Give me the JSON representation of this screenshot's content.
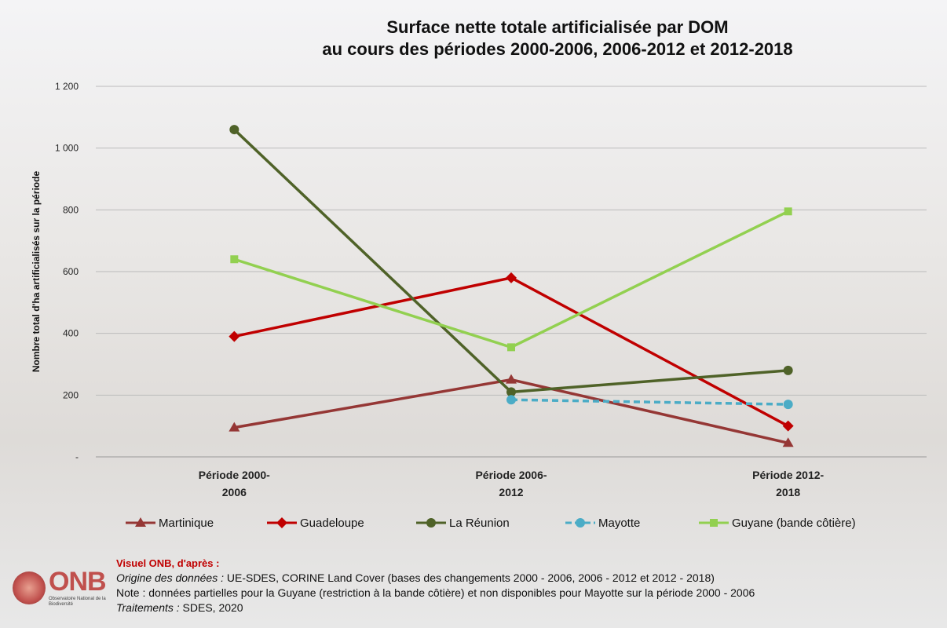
{
  "chart_data": {
    "type": "line",
    "title": "Surface nette totale artificialisée par DOM",
    "subtitle": "au cours des périodes 2000-2006, 2006-2012 et 2012-2018",
    "y_label": "Nombre total d'ha artificialisés sur la période",
    "categories": [
      "Période 2000-2006",
      "Période 2006-2012",
      "Période 2012-2018"
    ],
    "series": [
      {
        "name": "Martinique",
        "color": "#953735",
        "marker": "triangle",
        "line_style": "solid",
        "values": [
          95,
          250,
          45
        ]
      },
      {
        "name": "Guadeloupe",
        "color": "#c00000",
        "marker": "diamond",
        "line_style": "solid",
        "values": [
          390,
          580,
          100
        ]
      },
      {
        "name": "La Réunion",
        "color": "#4f6228",
        "marker": "circle",
        "line_style": "solid",
        "values": [
          1060,
          210,
          280
        ]
      },
      {
        "name": "Mayotte",
        "color": "#4bacc6",
        "marker": "circle",
        "line_style": "dashed",
        "values": [
          null,
          185,
          170
        ]
      },
      {
        "name": "Guyane (bande côtière)",
        "color": "#92d050",
        "marker": "square",
        "line_style": "solid",
        "values": [
          640,
          355,
          795
        ]
      }
    ],
    "ylim": [
      0,
      1200
    ],
    "yticks": [
      {
        "value": 0,
        "label": "-"
      },
      200,
      400,
      600,
      800,
      {
        "value": 1000,
        "label": "1 000"
      },
      {
        "value": 1200,
        "label": "1 200"
      }
    ],
    "grid": true
  },
  "footer": {
    "heading": "Visuel ONB, d'après :",
    "source_label": "Origine des données :",
    "source_text": "UE-SDES, CORINE Land Cover (bases des changements 2000 - 2006,  2006 - 2012  et 2012 - 2018)",
    "note": "Note : données partielles pour la Guyane (restriction à la bande côtière) et non disponibles pour Mayotte sur la période 2000 - 2006",
    "processing_label": "Traitements :",
    "processing_text": "SDES, 2020"
  },
  "logo": {
    "acronym": "ONB",
    "name": "Observatoire National de la Biodiversité"
  }
}
